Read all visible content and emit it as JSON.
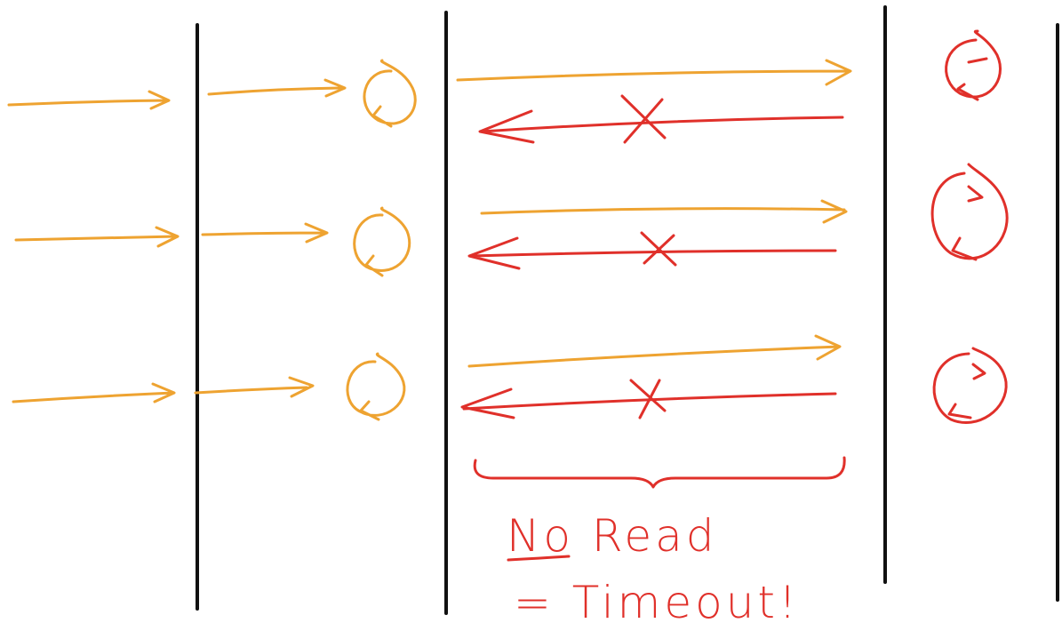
{
  "note": {
    "line1": "No Read",
    "line2": "= Timeout!"
  }
}
